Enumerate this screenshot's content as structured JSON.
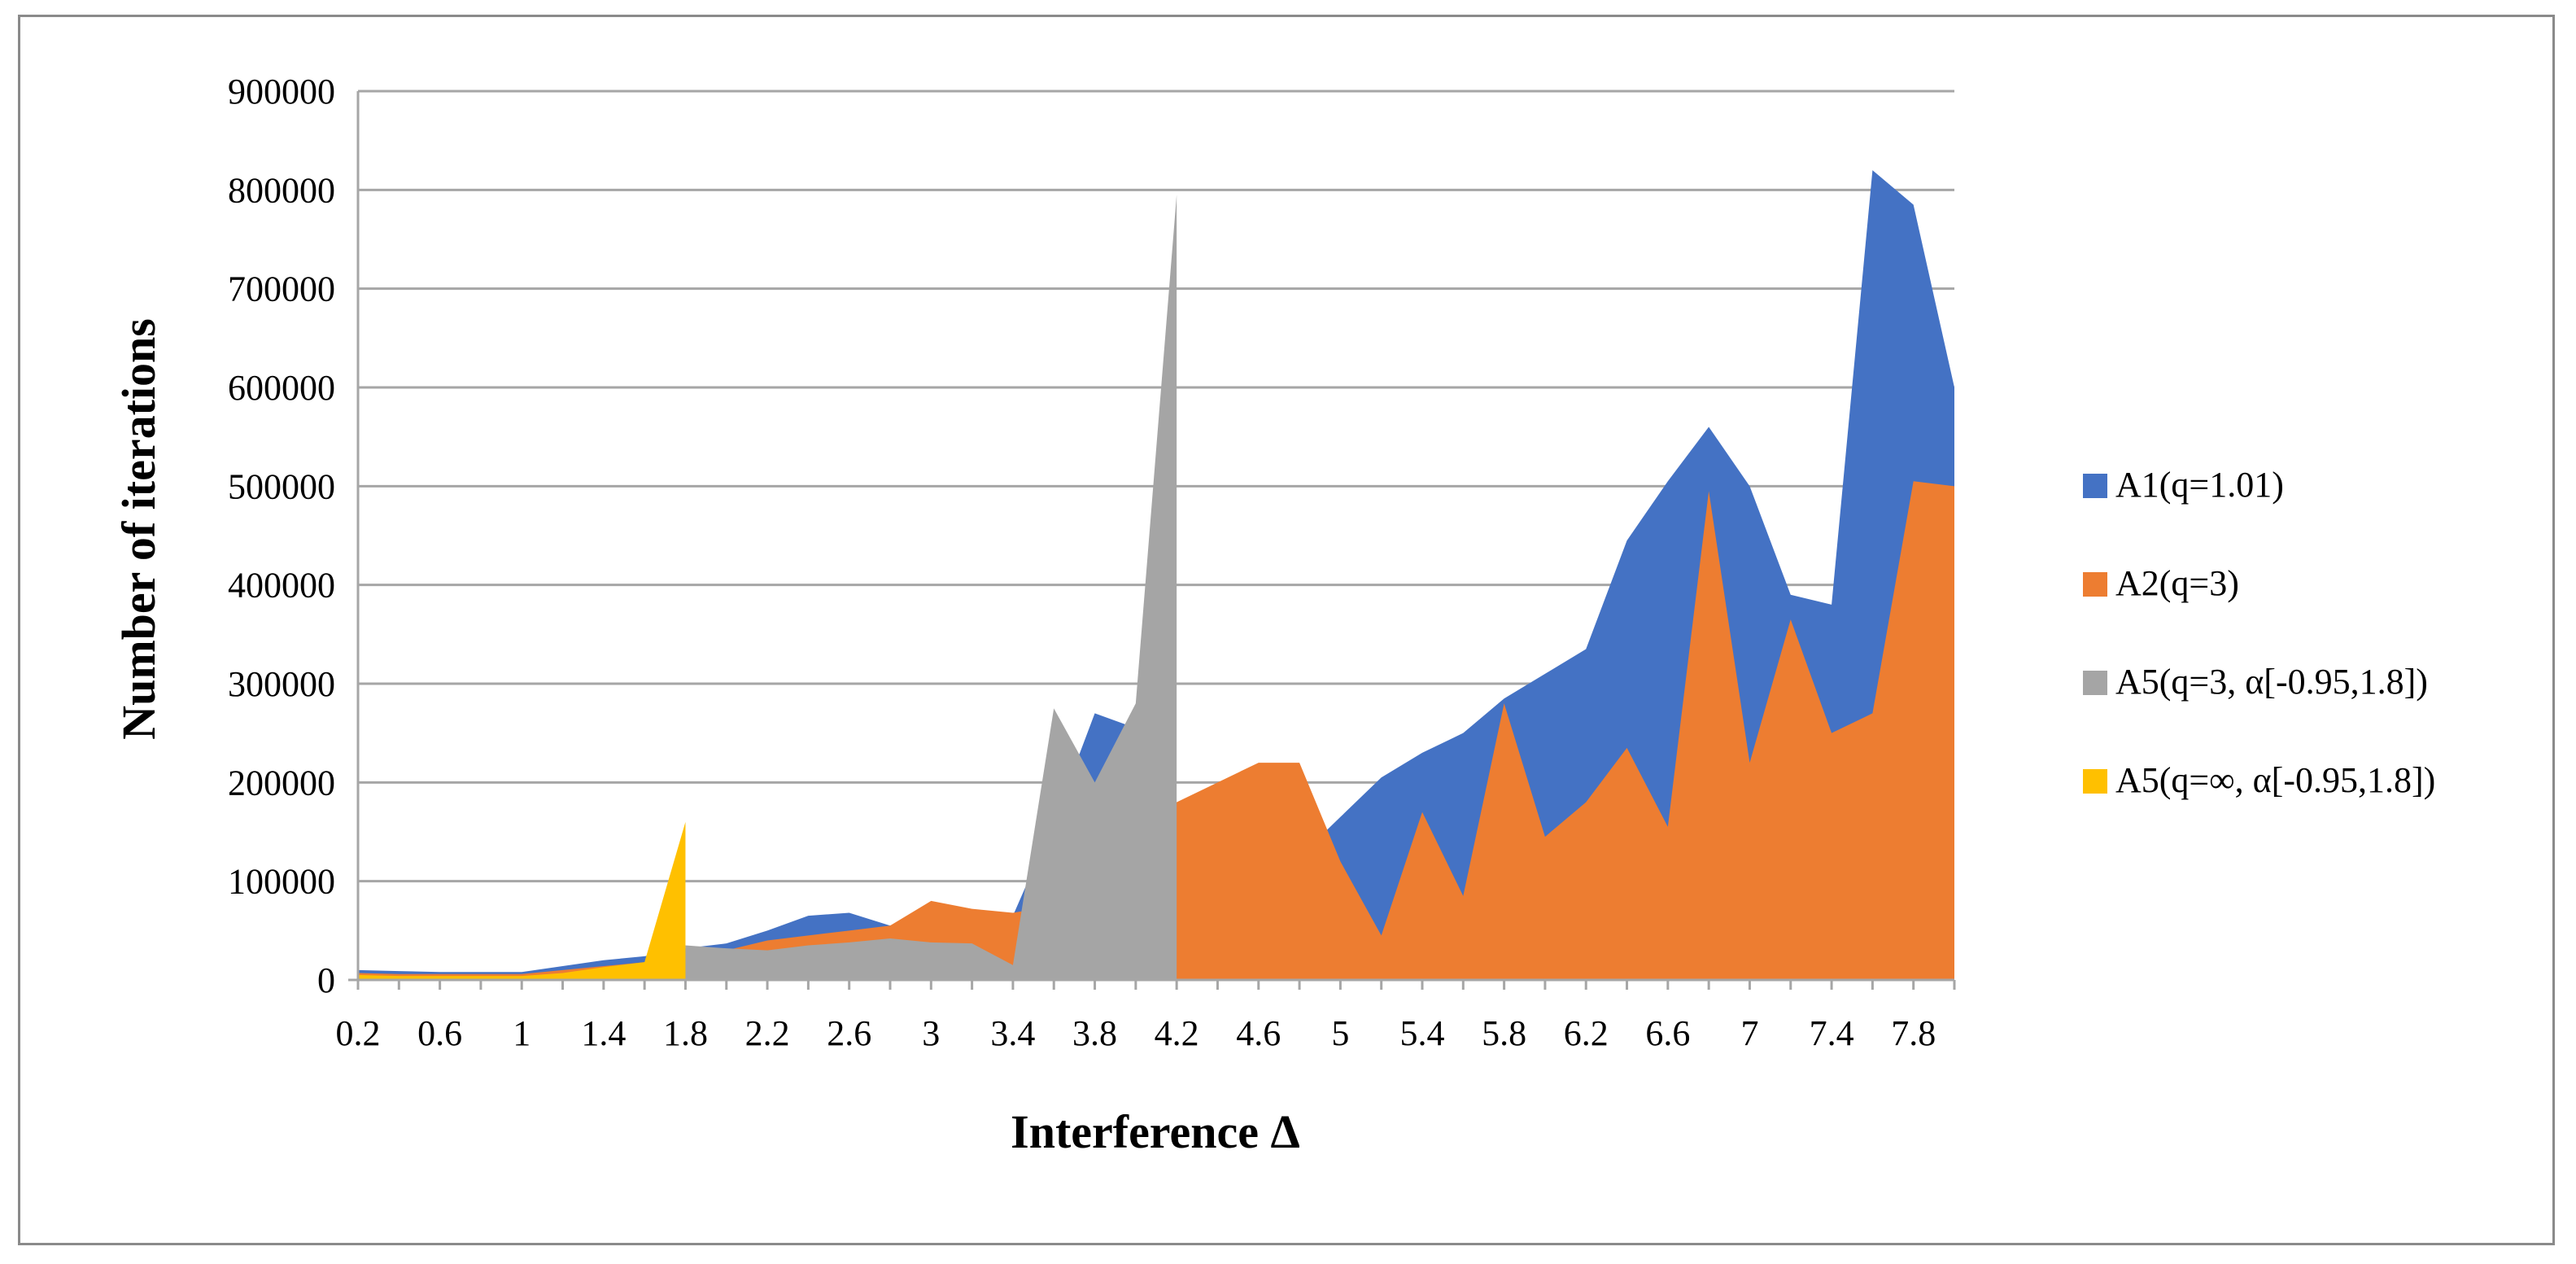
{
  "chart_data": {
    "type": "area",
    "xlabel": "Interference Δ",
    "ylabel": "Number of iterations",
    "ylim": [
      0,
      900000
    ],
    "yticks": [
      0,
      100000,
      200000,
      300000,
      400000,
      500000,
      600000,
      700000,
      800000,
      900000
    ],
    "ytick_labels": [
      "0",
      "100000",
      "200000",
      "300000",
      "400000",
      "500000",
      "600000",
      "700000",
      "800000",
      "900000"
    ],
    "xlim": [
      0.2,
      8.0
    ],
    "xtick_labels": [
      "0.2",
      "0.6",
      "1",
      "1.4",
      "1.8",
      "2.2",
      "2.6",
      "3",
      "3.4",
      "3.8",
      "4.2",
      "4.6",
      "5",
      "5.4",
      "5.8",
      "6.2",
      "6.6",
      "7",
      "7.4",
      "7.8"
    ],
    "grid": "horizontal",
    "legend_position": "right",
    "series": [
      {
        "name": "A1(q=1.01)",
        "color": "#4472C4",
        "x": [
          0.2,
          0.4,
          0.6,
          0.8,
          1.0,
          1.2,
          1.4,
          1.6,
          1.8,
          2.0,
          2.2,
          2.4,
          2.6,
          2.8,
          3.0,
          3.2,
          3.4,
          3.6,
          3.8,
          4.0,
          4.2,
          4.4,
          4.6,
          4.8,
          5.0,
          5.2,
          5.4,
          5.6,
          5.8,
          6.0,
          6.2,
          6.4,
          6.6,
          6.8,
          7.0,
          7.2,
          7.4,
          7.6,
          7.8,
          8.0
        ],
        "values": [
          10000,
          9000,
          8000,
          8000,
          8000,
          14000,
          20000,
          24000,
          32000,
          37000,
          50000,
          65000,
          68000,
          55000,
          75000,
          70000,
          65000,
          160000,
          270000,
          255000,
          155000,
          140000,
          130000,
          125000,
          165000,
          205000,
          230000,
          250000,
          285000,
          310000,
          335000,
          445000,
          505000,
          560000,
          500000,
          390000,
          380000,
          820000,
          785000,
          600000
        ]
      },
      {
        "name": "A2(q=3)",
        "color": "#ED7D31",
        "x": [
          0.2,
          0.4,
          0.6,
          0.8,
          1.0,
          1.2,
          1.4,
          1.6,
          1.8,
          2.0,
          2.2,
          2.4,
          2.6,
          2.8,
          3.0,
          3.2,
          3.4,
          3.6,
          3.8,
          4.0,
          4.2,
          4.4,
          4.6,
          4.8,
          5.0,
          5.2,
          5.4,
          5.6,
          5.8,
          6.0,
          6.2,
          6.4,
          6.6,
          6.8,
          7.0,
          7.2,
          7.4,
          7.6,
          7.8,
          8.0
        ],
        "values": [
          7000,
          6000,
          6000,
          6000,
          6000,
          10000,
          14000,
          18000,
          28000,
          30000,
          40000,
          45000,
          50000,
          55000,
          80000,
          72000,
          68000,
          75000,
          70000,
          90000,
          180000,
          200000,
          220000,
          220000,
          120000,
          45000,
          170000,
          85000,
          280000,
          145000,
          180000,
          235000,
          155000,
          495000,
          220000,
          365000,
          250000,
          270000,
          505000,
          500000
        ]
      },
      {
        "name": "A5(q=3, α[-0.95,1.8])",
        "color": "#A5A5A5",
        "x": [
          1.8,
          2.0,
          2.2,
          2.4,
          2.6,
          2.8,
          3.0,
          3.2,
          3.4,
          3.6,
          3.8,
          4.0,
          4.2
        ],
        "values": [
          35000,
          32000,
          30000,
          35000,
          38000,
          42000,
          38000,
          37000,
          15000,
          275000,
          200000,
          280000,
          795000
        ]
      },
      {
        "name": "A5(q=∞, α[-0.95,1.8])",
        "color": "#FFC000",
        "x": [
          0.2,
          0.4,
          0.6,
          0.8,
          1.0,
          1.2,
          1.4,
          1.6,
          1.8
        ],
        "values": [
          5000,
          4000,
          4000,
          4000,
          4000,
          7000,
          13000,
          18000,
          160000
        ]
      }
    ]
  }
}
